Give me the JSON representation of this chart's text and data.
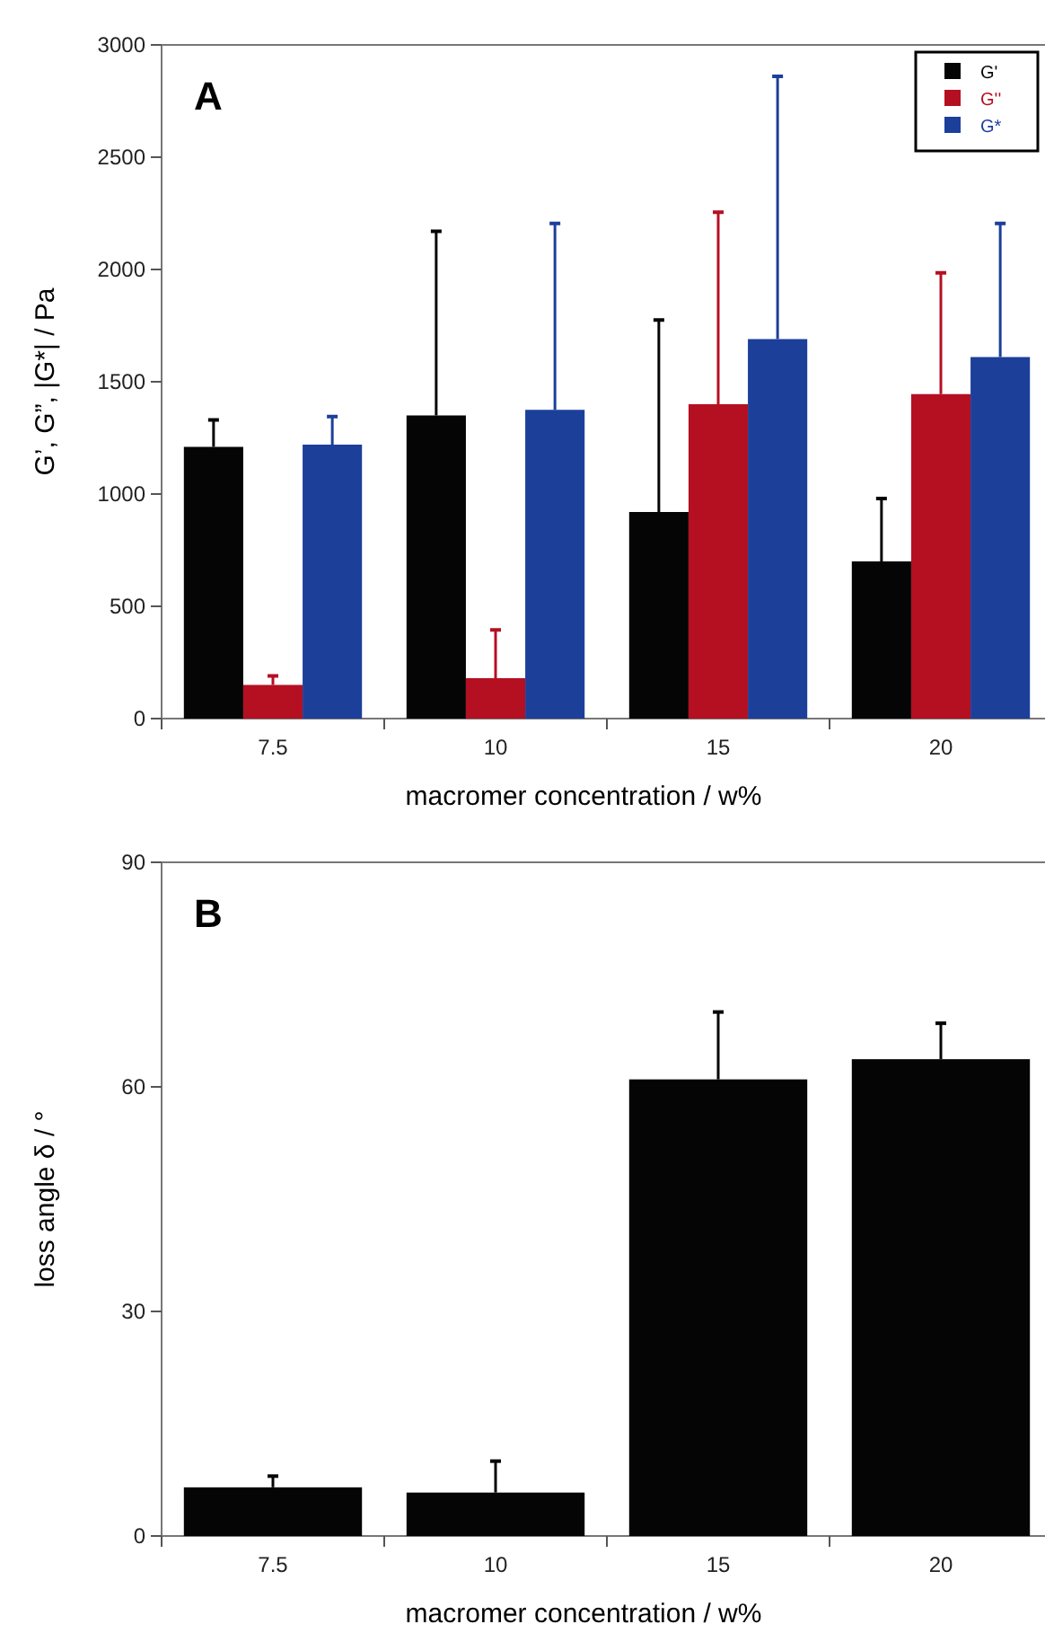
{
  "chart_data": [
    {
      "type": "bar",
      "title": "A",
      "xlabel": "macromer concentration / w%",
      "ylabel": "G’, G”, |G*| / Pa",
      "categories": [
        "7.5",
        "10",
        "15",
        "20"
      ],
      "ylim": [
        0,
        3000
      ],
      "yticks": [
        0,
        500,
        1000,
        1500,
        2000,
        2500,
        3000
      ],
      "legend": "top right",
      "series": [
        {
          "name": "G'",
          "color": "#050505",
          "values": [
            1210,
            1350,
            920,
            700
          ],
          "errors": [
            [
              1210,
              1330
            ],
            [
              1350,
              2170
            ],
            [
              920,
              1775
            ],
            [
              700,
              980
            ]
          ]
        },
        {
          "name": "G''",
          "color": "#b50f22",
          "values": [
            150,
            180,
            1400,
            1445
          ],
          "errors": [
            [
              150,
              190
            ],
            [
              180,
              395
            ],
            [
              1400,
              2255
            ],
            [
              1445,
              1985
            ]
          ]
        },
        {
          "name": "G*",
          "color": "#1c3f9a",
          "values": [
            1220,
            1375,
            1690,
            1610
          ],
          "errors": [
            [
              1220,
              1345
            ],
            [
              1375,
              2205
            ],
            [
              1690,
              2860
            ],
            [
              1610,
              2205
            ]
          ]
        }
      ]
    },
    {
      "type": "bar",
      "title": "B",
      "xlabel": "macromer concentration / w%",
      "ylabel": "loss angle δ / °",
      "categories": [
        "7.5",
        "10",
        "15",
        "20"
      ],
      "ylim": [
        0,
        90
      ],
      "yticks": [
        0,
        30,
        60,
        90
      ],
      "series": [
        {
          "color": "#050505",
          "values": [
            6.5,
            5.8,
            61,
            63.7
          ],
          "errors": [
            [
              6.5,
              8
            ],
            [
              5.8,
              10
            ],
            [
              61,
              70
            ],
            [
              63.7,
              68.5
            ]
          ]
        }
      ]
    }
  ]
}
